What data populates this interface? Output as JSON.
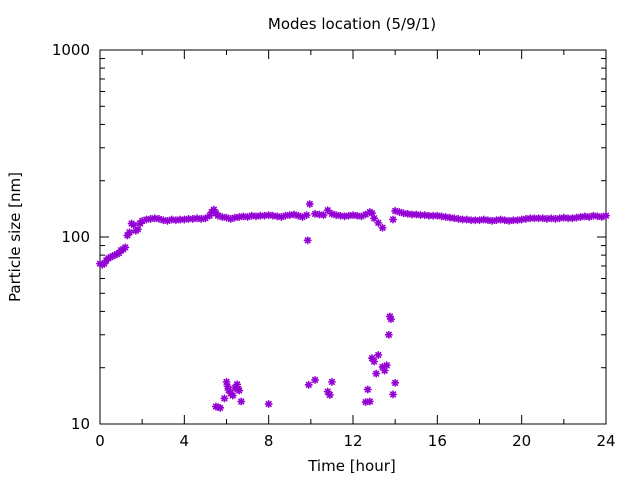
{
  "chart_data": {
    "type": "scatter",
    "title": "Modes location (5/9/1)",
    "xlabel": "Time [hour]",
    "ylabel": "Particle size [nm]",
    "xlim": [
      0,
      24
    ],
    "ylim": [
      10,
      1000
    ],
    "yscale": "log",
    "xticks": [
      0,
      4,
      8,
      12,
      16,
      20,
      24
    ],
    "xtick_labels": [
      "0",
      "4",
      "8",
      "12",
      "16",
      "20",
      "24"
    ],
    "yticks": [
      10,
      100,
      1000
    ],
    "ytick_labels": [
      "10",
      "100",
      "1000"
    ],
    "grid": false,
    "legend": "none",
    "marker": "star",
    "color": "#9400d3",
    "series": [
      {
        "values": [
          [
            0.0,
            72
          ],
          [
            0.1,
            71
          ],
          [
            0.2,
            72
          ],
          [
            0.3,
            75
          ],
          [
            0.4,
            77
          ],
          [
            0.5,
            78
          ],
          [
            0.6,
            79
          ],
          [
            0.7,
            80
          ],
          [
            0.8,
            81
          ],
          [
            0.9,
            82
          ],
          [
            1.0,
            85
          ],
          [
            1.1,
            86
          ],
          [
            1.2,
            88
          ],
          [
            1.3,
            102
          ],
          [
            1.4,
            106
          ],
          [
            1.5,
            118
          ],
          [
            1.6,
            116
          ],
          [
            1.7,
            108
          ],
          [
            1.8,
            110
          ],
          [
            1.9,
            118
          ],
          [
            2.0,
            122
          ],
          [
            2.2,
            124
          ],
          [
            2.4,
            125
          ],
          [
            2.6,
            126
          ],
          [
            2.8,
            125
          ],
          [
            3.0,
            123
          ],
          [
            3.2,
            122
          ],
          [
            3.4,
            124
          ],
          [
            3.6,
            123
          ],
          [
            3.8,
            124
          ],
          [
            4.0,
            124
          ],
          [
            4.2,
            125
          ],
          [
            4.4,
            125
          ],
          [
            4.6,
            126
          ],
          [
            4.8,
            125
          ],
          [
            5.0,
            126
          ],
          [
            5.2,
            130
          ],
          [
            5.3,
            136
          ],
          [
            5.4,
            140
          ],
          [
            5.5,
            134
          ],
          [
            5.6,
            130
          ],
          [
            5.8,
            128
          ],
          [
            6.0,
            127
          ],
          [
            6.2,
            125
          ],
          [
            6.4,
            127
          ],
          [
            6.6,
            128
          ],
          [
            6.8,
            129
          ],
          [
            7.0,
            128
          ],
          [
            7.2,
            130
          ],
          [
            7.4,
            129
          ],
          [
            7.6,
            130
          ],
          [
            7.8,
            130
          ],
          [
            8.0,
            131
          ],
          [
            8.2,
            130
          ],
          [
            8.4,
            129
          ],
          [
            8.6,
            128
          ],
          [
            8.8,
            130
          ],
          [
            9.0,
            131
          ],
          [
            9.2,
            132
          ],
          [
            9.4,
            130
          ],
          [
            9.6,
            128
          ],
          [
            9.8,
            131
          ],
          [
            9.85,
            96
          ],
          [
            9.95,
            150
          ],
          [
            10.2,
            133
          ],
          [
            10.4,
            132
          ],
          [
            10.6,
            131
          ],
          [
            10.8,
            139
          ],
          [
            11.0,
            133
          ],
          [
            11.2,
            131
          ],
          [
            11.4,
            130
          ],
          [
            11.6,
            129
          ],
          [
            11.8,
            130
          ],
          [
            12.0,
            131
          ],
          [
            12.2,
            130
          ],
          [
            12.4,
            129
          ],
          [
            12.6,
            132
          ],
          [
            12.8,
            136
          ],
          [
            12.9,
            134
          ],
          [
            13.0,
            126
          ],
          [
            13.2,
            119
          ],
          [
            13.4,
            112
          ],
          [
            13.9,
            124
          ],
          [
            14.0,
            138
          ],
          [
            14.2,
            136
          ],
          [
            14.4,
            134
          ],
          [
            14.6,
            133
          ],
          [
            14.8,
            132
          ],
          [
            15.0,
            132
          ],
          [
            15.2,
            131
          ],
          [
            15.4,
            131
          ],
          [
            15.6,
            130
          ],
          [
            15.8,
            130
          ],
          [
            16.0,
            130
          ],
          [
            16.2,
            129
          ],
          [
            16.4,
            128
          ],
          [
            16.6,
            127
          ],
          [
            16.8,
            126
          ],
          [
            17.0,
            125
          ],
          [
            17.2,
            124
          ],
          [
            17.4,
            124
          ],
          [
            17.6,
            123
          ],
          [
            17.8,
            123
          ],
          [
            18.0,
            123
          ],
          [
            18.2,
            124
          ],
          [
            18.4,
            123
          ],
          [
            18.6,
            122
          ],
          [
            18.8,
            123
          ],
          [
            19.0,
            124
          ],
          [
            19.2,
            123
          ],
          [
            19.4,
            122
          ],
          [
            19.6,
            123
          ],
          [
            19.8,
            123
          ],
          [
            20.0,
            124
          ],
          [
            20.2,
            125
          ],
          [
            20.4,
            126
          ],
          [
            20.6,
            126
          ],
          [
            20.8,
            126
          ],
          [
            21.0,
            126
          ],
          [
            21.2,
            125
          ],
          [
            21.4,
            126
          ],
          [
            21.6,
            125
          ],
          [
            21.8,
            126
          ],
          [
            22.0,
            127
          ],
          [
            22.2,
            126
          ],
          [
            22.4,
            126
          ],
          [
            22.6,
            127
          ],
          [
            22.8,
            128
          ],
          [
            23.0,
            129
          ],
          [
            23.2,
            128
          ],
          [
            23.4,
            130
          ],
          [
            23.6,
            129
          ],
          [
            23.8,
            128
          ],
          [
            24.0,
            130
          ],
          [
            5.5,
            12.4
          ],
          [
            5.6,
            12.3
          ],
          [
            5.7,
            12.2
          ],
          [
            5.9,
            13.7
          ],
          [
            6.0,
            16.8
          ],
          [
            6.05,
            15.9
          ],
          [
            6.1,
            15.2
          ],
          [
            6.2,
            14.6
          ],
          [
            6.3,
            14.2
          ],
          [
            6.4,
            15.6
          ],
          [
            6.5,
            16.3
          ],
          [
            6.55,
            15.4
          ],
          [
            6.6,
            15.1
          ],
          [
            6.7,
            13.2
          ],
          [
            8.0,
            12.8
          ],
          [
            9.9,
            16.2
          ],
          [
            10.2,
            17.2
          ],
          [
            10.8,
            14.9
          ],
          [
            10.9,
            14.3
          ],
          [
            11.0,
            16.8
          ],
          [
            12.6,
            13.1
          ],
          [
            12.7,
            15.3
          ],
          [
            12.8,
            13.2
          ],
          [
            12.9,
            22.5
          ],
          [
            13.0,
            21.6
          ],
          [
            13.1,
            18.6
          ],
          [
            13.2,
            23.4
          ],
          [
            13.4,
            20.2
          ],
          [
            13.5,
            19.3
          ],
          [
            13.6,
            20.6
          ],
          [
            13.7,
            30.0
          ],
          [
            13.75,
            37.6
          ],
          [
            13.8,
            36.4
          ],
          [
            13.9,
            14.4
          ],
          [
            14.0,
            16.6
          ]
        ]
      }
    ]
  }
}
